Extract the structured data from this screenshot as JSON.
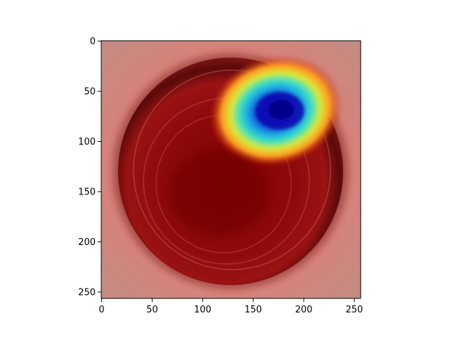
{
  "chart_data": {
    "type": "heatmap",
    "description_kind": "image-with-heatmap-overlay",
    "x": {
      "ticks": [
        0,
        50,
        100,
        150,
        200,
        250
      ],
      "tick_labels": [
        "0",
        "50",
        "100",
        "150",
        "200",
        "250"
      ],
      "range": [
        0,
        256
      ]
    },
    "y": {
      "ticks": [
        0,
        50,
        100,
        150,
        200,
        250
      ],
      "tick_labels": [
        "0",
        "50",
        "100",
        "150",
        "200",
        "250"
      ],
      "range": [
        0,
        256
      ],
      "inverted": true
    },
    "xlabel": "",
    "ylabel": "",
    "title": "",
    "grid": false,
    "colormap": "jet",
    "colors": {
      "background": "#c77b73",
      "dish_rim": "#6b0f10",
      "dish_inner": "#8f1010",
      "hot_core": "#7a0000",
      "cool_peak": "#0a13c9",
      "mid_cyan": "#1fd6d6",
      "mid_yellow": "#f0e030",
      "mid_orange": "#ff7a1a"
    }
  }
}
